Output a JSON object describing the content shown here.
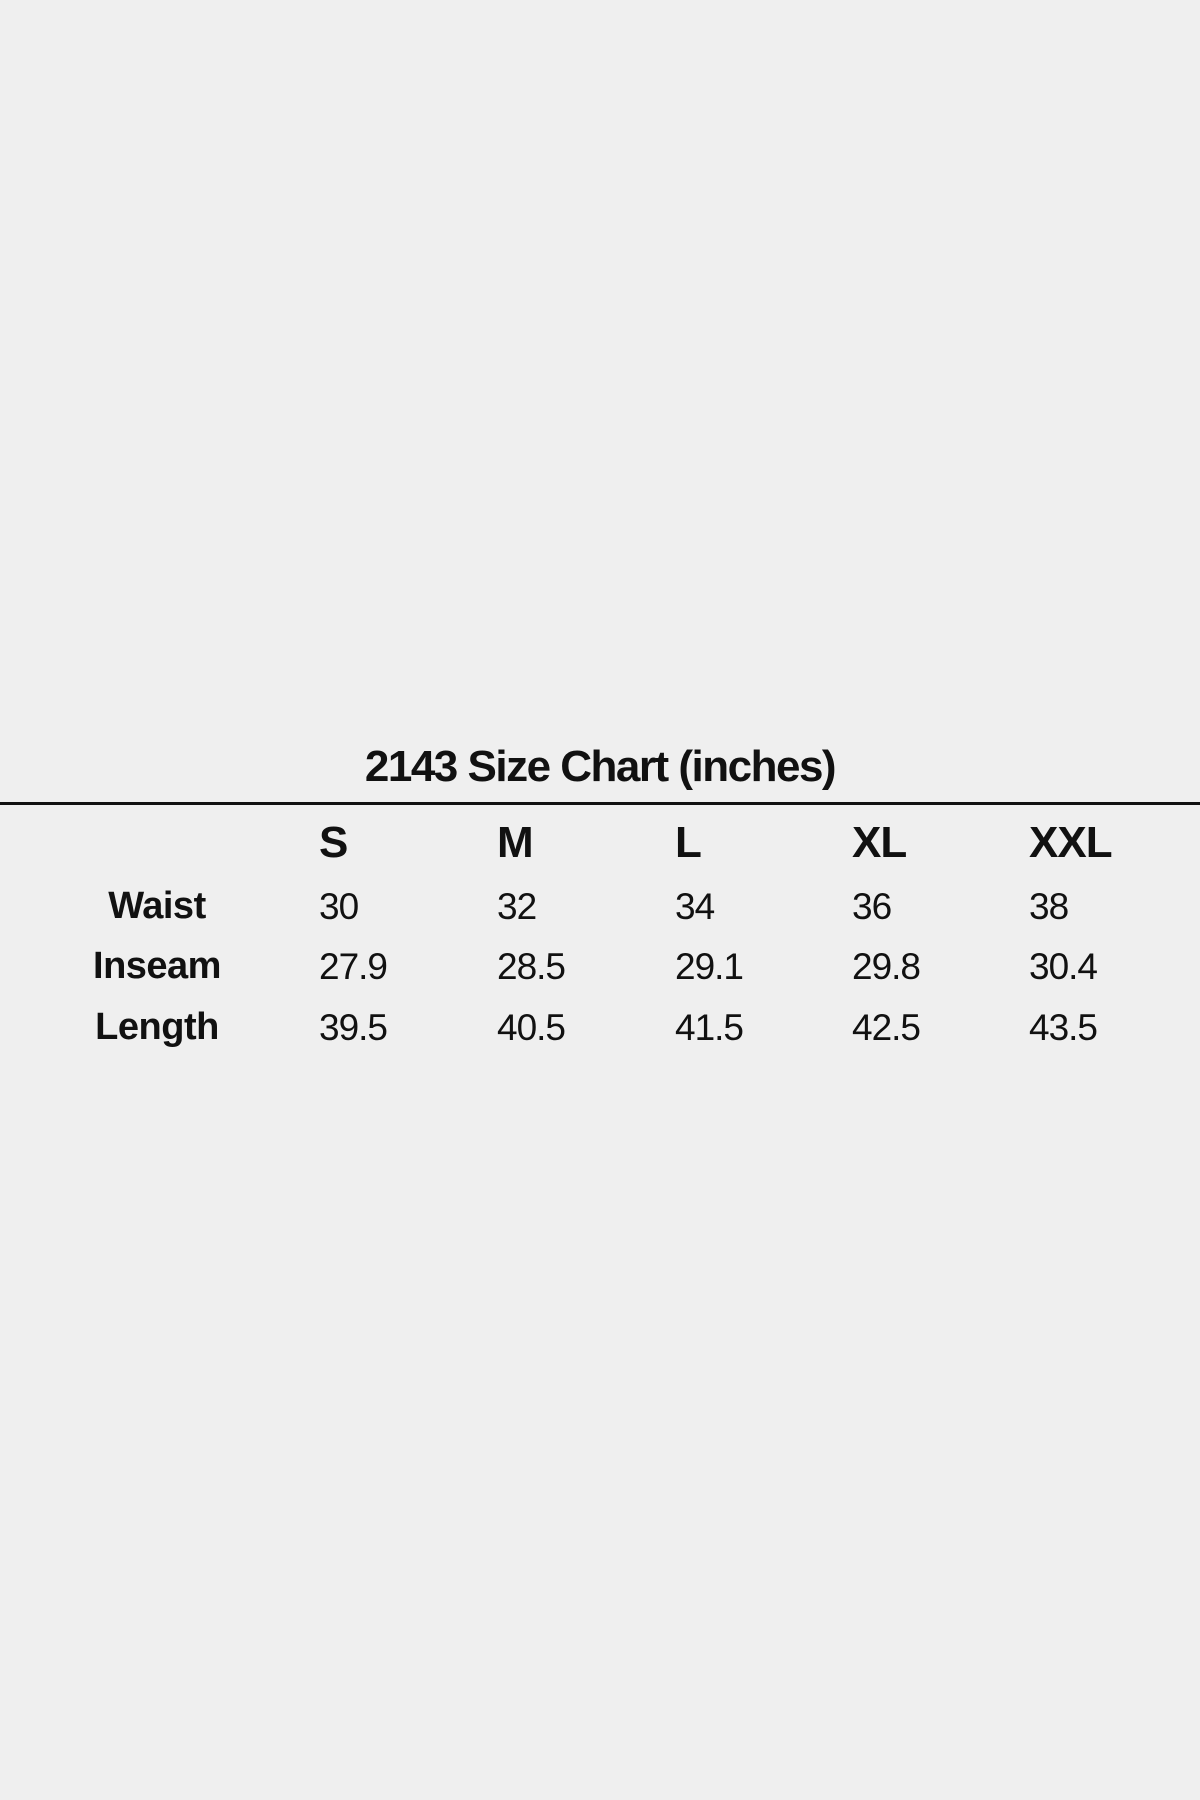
{
  "title": "2143 Size Chart (inches)",
  "columns": [
    "S",
    "M",
    "L",
    "XL",
    "XXL"
  ],
  "rows": [
    {
      "label": "Waist",
      "values": [
        "30",
        "32",
        "34",
        "36",
        "38"
      ]
    },
    {
      "label": "Inseam",
      "values": [
        "27.9",
        "28.5",
        "29.1",
        "29.8",
        "30.4"
      ]
    },
    {
      "label": "Length",
      "values": [
        "39.5",
        "40.5",
        "41.5",
        "42.5",
        "43.5"
      ]
    }
  ]
}
